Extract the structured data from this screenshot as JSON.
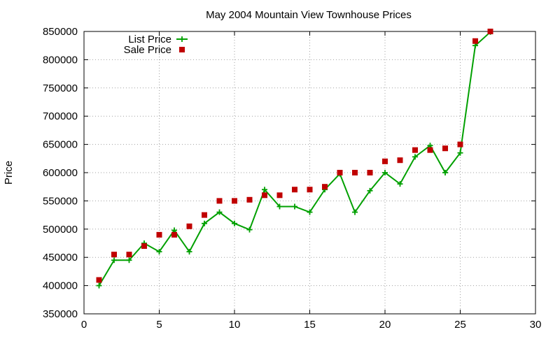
{
  "chart_data": {
    "type": "line",
    "title": "May 2004 Mountain View Townhouse Prices",
    "xlabel": "",
    "ylabel": "Price",
    "xlim": [
      0,
      30
    ],
    "ylim": [
      350000,
      850000
    ],
    "x_ticks": [
      0,
      5,
      10,
      15,
      20,
      25,
      30
    ],
    "y_ticks": [
      350000,
      400000,
      450000,
      500000,
      550000,
      600000,
      650000,
      700000,
      750000,
      800000,
      850000
    ],
    "grid": true,
    "legend_position": "top-left",
    "x": [
      1,
      2,
      3,
      4,
      5,
      6,
      7,
      8,
      9,
      10,
      11,
      12,
      13,
      14,
      15,
      16,
      17,
      18,
      19,
      20,
      21,
      22,
      23,
      24,
      25,
      26,
      27
    ],
    "series": [
      {
        "name": "List Price",
        "style": "line+cross",
        "color": "#00a000",
        "values": [
          400000,
          445000,
          445000,
          475000,
          460000,
          498000,
          460000,
          510000,
          530000,
          510000,
          499000,
          570000,
          540000,
          540000,
          530000,
          570000,
          598000,
          530000,
          568000,
          600000,
          580000,
          628000,
          648000,
          600000,
          635000,
          825000,
          849000
        ]
      },
      {
        "name": "Sale Price",
        "style": "square",
        "color": "#c00000",
        "values": [
          410000,
          455000,
          455000,
          470000,
          490000,
          490000,
          505000,
          525000,
          550000,
          550000,
          552000,
          560000,
          560000,
          570000,
          570000,
          575000,
          600000,
          600000,
          600000,
          620000,
          622000,
          640000,
          640000,
          643000,
          650000,
          833000,
          850000
        ]
      }
    ]
  }
}
